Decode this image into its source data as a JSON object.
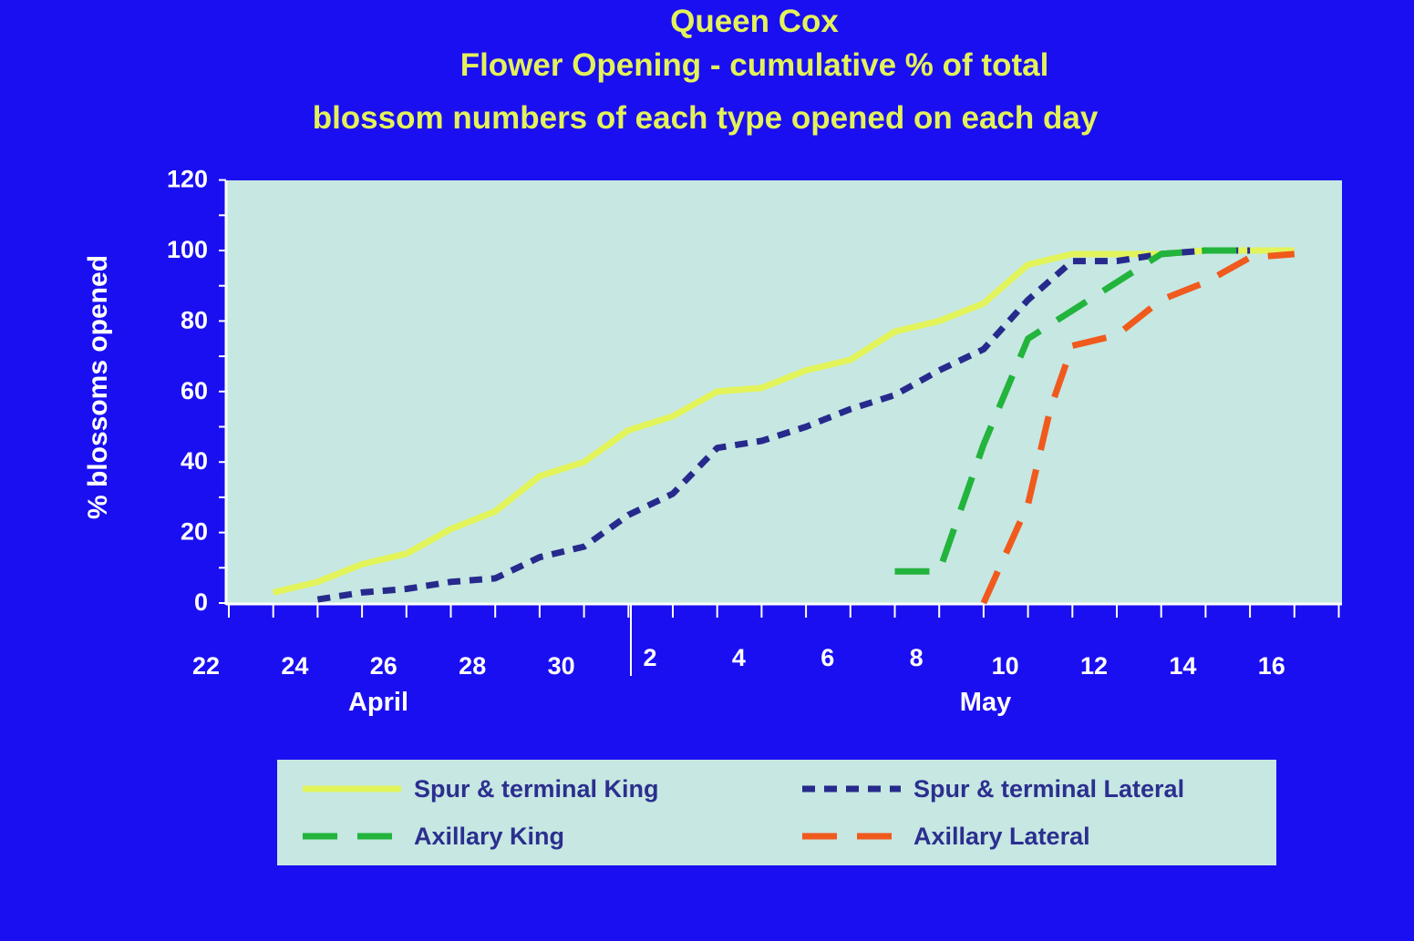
{
  "title_lines": [
    "Queen Cox",
    "Flower Opening - cumulative % of total",
    "blossom numbers of each type opened on each day"
  ],
  "chart_data": {
    "type": "line",
    "title": "Queen Cox Flower Opening - cumulative % of total blossom numbers of each type opened on each day",
    "ylabel": "% blossoms opened",
    "xlabel": "",
    "ylim": [
      0,
      120
    ],
    "yticks": [
      "0",
      "20",
      "40",
      "60",
      "80",
      "100",
      "120"
    ],
    "xlim": [
      "22 April",
      "17 May"
    ],
    "x_tick_labels": [
      "22",
      "24",
      "26",
      "28",
      "30",
      "2",
      "4",
      "6",
      "8",
      "10",
      "12",
      "14",
      "16"
    ],
    "month_labels": [
      "April",
      "May"
    ],
    "grid": false,
    "legend_position": "bottom",
    "series": [
      {
        "name": "Spur & terminal King",
        "color": "#e2f45a",
        "style": "solid",
        "x": [
          "23 Apr",
          "24 Apr",
          "25 Apr",
          "26 Apr",
          "27 Apr",
          "28 Apr",
          "29 Apr",
          "30 Apr",
          "1 May",
          "2 May",
          "3 May",
          "4 May",
          "5 May",
          "6 May",
          "7 May",
          "8 May",
          "9 May",
          "10 May",
          "11 May",
          "12 May",
          "13 May",
          "14 May",
          "15 May",
          "16 May"
        ],
        "values": [
          3,
          6,
          11,
          14,
          21,
          26,
          36,
          40,
          49,
          53,
          60,
          61,
          66,
          69,
          77,
          80,
          85,
          96,
          99,
          99,
          99,
          100,
          100,
          100
        ]
      },
      {
        "name": "Spur & terminal Lateral",
        "color": "#262a8c",
        "style": "dotted",
        "x": [
          "24 Apr",
          "25 Apr",
          "26 Apr",
          "27 Apr",
          "28 Apr",
          "29 Apr",
          "30 Apr",
          "1 May",
          "2 May",
          "3 May",
          "4 May",
          "5 May",
          "6 May",
          "7 May",
          "8 May",
          "9 May",
          "10 May",
          "11 May",
          "12 May",
          "13 May",
          "14 May",
          "15 May"
        ],
        "values": [
          1,
          3,
          4,
          6,
          7,
          13,
          16,
          25,
          31,
          44,
          46,
          50,
          55,
          59,
          66,
          72,
          86,
          97,
          97,
          99,
          100,
          100
        ]
      },
      {
        "name": "Axillary King",
        "color": "#22b43c",
        "style": "dashed",
        "x": [
          "7 May",
          "8 May",
          "9 May",
          "10 May",
          "11 May",
          "12 May",
          "13 May",
          "14 May",
          "15 May"
        ],
        "values": [
          9,
          9,
          45,
          75,
          83,
          91,
          99,
          100,
          100
        ]
      },
      {
        "name": "Axillary Lateral",
        "color": "#f05a1c",
        "style": "dashed",
        "x": [
          "9 May",
          "10 May",
          "10.5 May",
          "11 May",
          "12 May",
          "13 May",
          "14 May",
          "15 May",
          "16 May"
        ],
        "values": [
          0,
          28,
          55,
          73,
          76,
          86,
          91,
          98,
          99
        ]
      }
    ]
  }
}
